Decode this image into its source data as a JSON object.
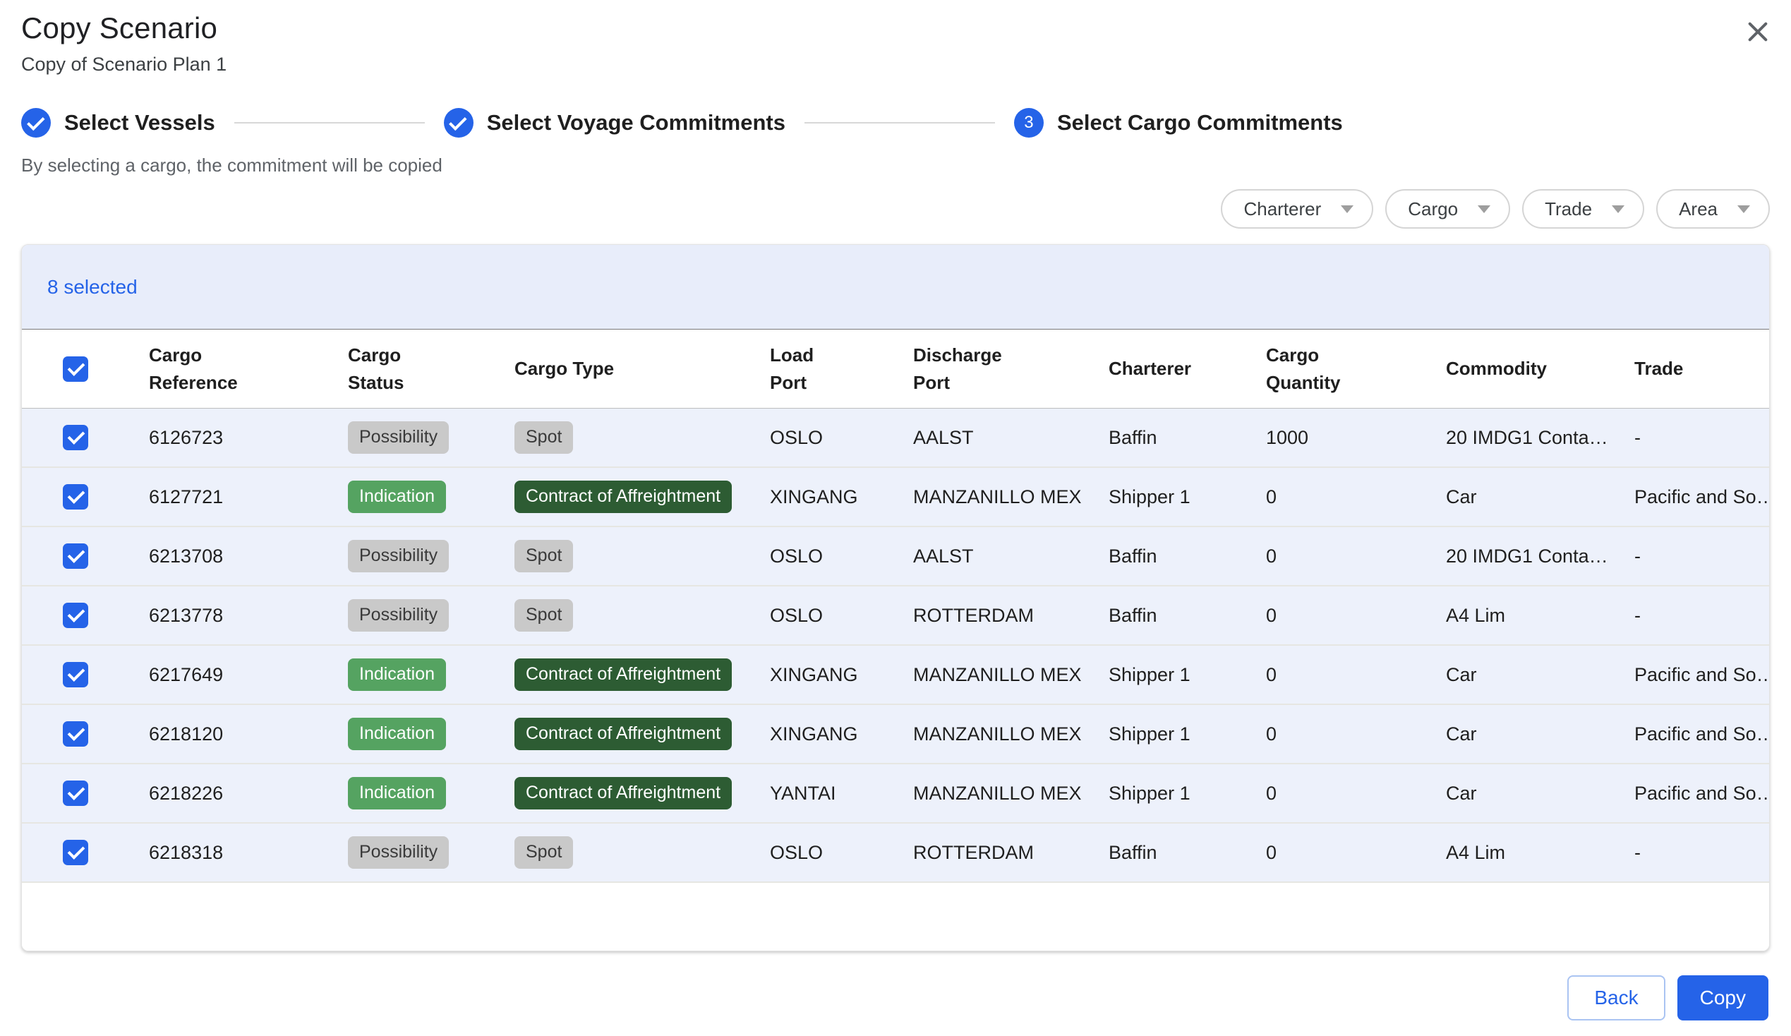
{
  "dialog": {
    "title": "Copy Scenario",
    "subtitle": "Copy of Scenario Plan 1",
    "hint": "By selecting a cargo, the commitment will be copied"
  },
  "stepper": {
    "steps": [
      {
        "label": "Select Vessels",
        "state": "completed"
      },
      {
        "label": "Select Voyage Commitments",
        "state": "completed"
      },
      {
        "label": "Select Cargo Commitments",
        "state": "active",
        "number": "3"
      }
    ]
  },
  "filters": [
    {
      "label": "Charterer"
    },
    {
      "label": "Cargo"
    },
    {
      "label": "Trade"
    },
    {
      "label": "Area"
    }
  ],
  "table": {
    "selected_count": "8 selected",
    "select_all_checked": true,
    "columns": [
      {
        "key": "select",
        "label": ""
      },
      {
        "key": "cargo_reference",
        "label": "Cargo\nReference"
      },
      {
        "key": "cargo_status",
        "label": "Cargo\nStatus"
      },
      {
        "key": "cargo_type",
        "label": "Cargo Type"
      },
      {
        "key": "load_port",
        "label": "Load\nPort"
      },
      {
        "key": "discharge_port",
        "label": "Discharge\nPort"
      },
      {
        "key": "charterer",
        "label": "Charterer"
      },
      {
        "key": "cargo_quantity",
        "label": "Cargo\nQuantity"
      },
      {
        "key": "commodity",
        "label": "Commodity"
      },
      {
        "key": "trade",
        "label": "Trade"
      }
    ],
    "rows": [
      {
        "selected": true,
        "cargo_reference": "6126723",
        "cargo_status": "Possibility",
        "cargo_type": "Spot",
        "load_port": "OSLO",
        "discharge_port": "AALST",
        "charterer": "Baffin",
        "cargo_quantity": "1000",
        "commodity": "20 IMDG1 Conta…",
        "trade": "-"
      },
      {
        "selected": true,
        "cargo_reference": "6127721",
        "cargo_status": "Indication",
        "cargo_type": "Contract of Affreightment",
        "load_port": "XINGANG",
        "discharge_port": "MANZANILLO MEX",
        "charterer": "Shipper 1",
        "cargo_quantity": "0",
        "commodity": "Car",
        "trade": "Pacific and So…"
      },
      {
        "selected": true,
        "cargo_reference": "6213708",
        "cargo_status": "Possibility",
        "cargo_type": "Spot",
        "load_port": "OSLO",
        "discharge_port": "AALST",
        "charterer": "Baffin",
        "cargo_quantity": "0",
        "commodity": "20 IMDG1 Conta…",
        "trade": "-"
      },
      {
        "selected": true,
        "cargo_reference": "6213778",
        "cargo_status": "Possibility",
        "cargo_type": "Spot",
        "load_port": "OSLO",
        "discharge_port": "ROTTERDAM",
        "charterer": "Baffin",
        "cargo_quantity": "0",
        "commodity": "A4 Lim",
        "trade": "-"
      },
      {
        "selected": true,
        "cargo_reference": "6217649",
        "cargo_status": "Indication",
        "cargo_type": "Contract of Affreightment",
        "load_port": "XINGANG",
        "discharge_port": "MANZANILLO MEX",
        "charterer": "Shipper 1",
        "cargo_quantity": "0",
        "commodity": "Car",
        "trade": "Pacific and So…"
      },
      {
        "selected": true,
        "cargo_reference": "6218120",
        "cargo_status": "Indication",
        "cargo_type": "Contract of Affreightment",
        "load_port": "XINGANG",
        "discharge_port": "MANZANILLO MEX",
        "charterer": "Shipper 1",
        "cargo_quantity": "0",
        "commodity": "Car",
        "trade": "Pacific and So…"
      },
      {
        "selected": true,
        "cargo_reference": "6218226",
        "cargo_status": "Indication",
        "cargo_type": "Contract of Affreightment",
        "load_port": "YANTAI",
        "discharge_port": "MANZANILLO MEX",
        "charterer": "Shipper 1",
        "cargo_quantity": "0",
        "commodity": "Car",
        "trade": "Pacific and So…"
      },
      {
        "selected": true,
        "cargo_reference": "6218318",
        "cargo_status": "Possibility",
        "cargo_type": "Spot",
        "load_port": "OSLO",
        "discharge_port": "ROTTERDAM",
        "charterer": "Baffin",
        "cargo_quantity": "0",
        "commodity": "A4 Lim",
        "trade": "-"
      }
    ]
  },
  "badges": {
    "Possibility": {
      "bg": "#c9c9c9",
      "fg": "#3a3a3a"
    },
    "Spot": {
      "bg": "#c9c9c9",
      "fg": "#3a3a3a"
    },
    "Indication": {
      "bg": "#55a361",
      "fg": "#ffffff"
    },
    "Contract of Affreightment": {
      "bg": "#2d5c33",
      "fg": "#ffffff"
    }
  },
  "colors": {
    "primary": "#2563e8",
    "toolbar_bg": "#e8edfa",
    "row_bg": "#edf1fb",
    "close_icon": "#5f6368",
    "step_line": "#d8d8d8"
  },
  "footer": {
    "back_label": "Back",
    "copy_label": "Copy"
  }
}
